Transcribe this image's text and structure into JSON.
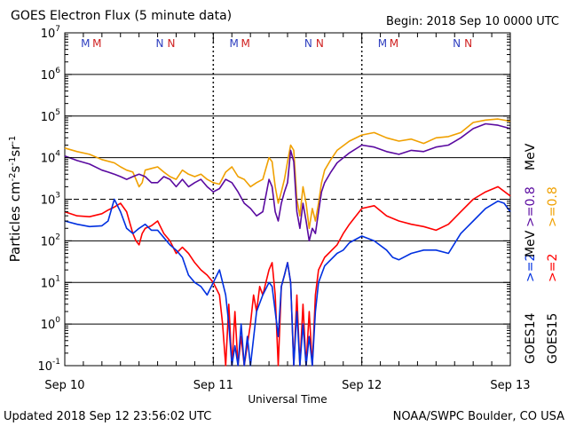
{
  "header": {
    "title": "GOES Electron Flux (5 minute data)",
    "begin": "Begin: 2018 Sep 10 0000 UTC"
  },
  "footer": {
    "updated": "Updated 2018 Sep 12 23:56:02 UTC",
    "credit": "NOAA/SWPC Boulder, CO USA"
  },
  "colors": {
    "goes14_ge08": "#5a0aa0",
    "goes15_ge08": "#f0a000",
    "goes14_ge2": "#0030e0",
    "goes15_ge2": "#ff0000",
    "markers_M": "#3040c0",
    "markers_N": "#d02020",
    "axis": "#000000"
  },
  "legend": {
    "goes14_label": "GOES14",
    "goes15_label": "GOES15",
    "ge2": ">=2",
    "ge08": ">=0.8",
    "unit": "MeV"
  },
  "chart_data": {
    "type": "line",
    "title": "GOES Electron Flux (5 minute data)",
    "xlabel": "Universal Time",
    "ylabel": "Particles cm-2s-1sr-1",
    "yscale": "log",
    "ylim": [
      0.1,
      10000000
    ],
    "xlim": [
      0,
      72
    ],
    "x_unit": "hours since 2018 Sep 10 0000 UTC",
    "x_ticks": [
      {
        "x": 0,
        "label": "Sep 10"
      },
      {
        "x": 24,
        "label": "Sep 11"
      },
      {
        "x": 48,
        "label": "Sep 12"
      },
      {
        "x": 72,
        "label": "Sep 13"
      }
    ],
    "y_ticks": [
      {
        "v": 0.1,
        "base": "10",
        "exp": "-1"
      },
      {
        "v": 1,
        "base": "10",
        "exp": "0"
      },
      {
        "v": 10,
        "base": "10",
        "exp": "1"
      },
      {
        "v": 100,
        "base": "10",
        "exp": "2"
      },
      {
        "v": 1000,
        "base": "10",
        "exp": "3"
      },
      {
        "v": 10000,
        "base": "10",
        "exp": "4"
      },
      {
        "v": 100000,
        "base": "10",
        "exp": "5"
      },
      {
        "v": 1000000,
        "base": "10",
        "exp": "6"
      },
      {
        "v": 10000000,
        "base": "10",
        "exp": "7"
      }
    ],
    "threshold": 1000,
    "day_markers": [
      {
        "letters": [
          {
            "t": "M",
            "c": "M"
          },
          {
            "t": "M",
            "c": "N"
          }
        ],
        "x": 2.6
      },
      {
        "letters": [
          {
            "t": "N",
            "c": "M"
          },
          {
            "t": "N",
            "c": "N"
          }
        ],
        "x": 14.7
      },
      {
        "letters": [
          {
            "t": "M",
            "c": "M"
          },
          {
            "t": "M",
            "c": "N"
          }
        ],
        "x": 26.6
      },
      {
        "letters": [
          {
            "t": "N",
            "c": "M"
          },
          {
            "t": "N",
            "c": "N"
          }
        ],
        "x": 38.7
      },
      {
        "letters": [
          {
            "t": "M",
            "c": "M"
          },
          {
            "t": "M",
            "c": "N"
          }
        ],
        "x": 50.6
      },
      {
        "letters": [
          {
            "t": "N",
            "c": "M"
          },
          {
            "t": "N",
            "c": "N"
          }
        ],
        "x": 62.7
      }
    ],
    "series": [
      {
        "name": "GOES15 >=0.8 MeV",
        "color": "#f0a000",
        "points": [
          [
            0,
            17000
          ],
          [
            2,
            14000
          ],
          [
            4,
            12000
          ],
          [
            6,
            9000
          ],
          [
            8,
            7500
          ],
          [
            9,
            6000
          ],
          [
            10,
            5000
          ],
          [
            11,
            4500
          ],
          [
            11.5,
            3000
          ],
          [
            12,
            2000
          ],
          [
            12.5,
            2500
          ],
          [
            13,
            5000
          ],
          [
            14,
            5500
          ],
          [
            15,
            6000
          ],
          [
            16,
            4500
          ],
          [
            17,
            3500
          ],
          [
            18,
            3000
          ],
          [
            19,
            5000
          ],
          [
            20,
            4000
          ],
          [
            21,
            3500
          ],
          [
            22,
            4000
          ],
          [
            23,
            3000
          ],
          [
            24,
            2500
          ],
          [
            25,
            2300
          ],
          [
            26,
            4500
          ],
          [
            27,
            6000
          ],
          [
            28,
            3500
          ],
          [
            29,
            3000
          ],
          [
            30,
            2000
          ],
          [
            31,
            2500
          ],
          [
            32,
            3000
          ],
          [
            33,
            10000
          ],
          [
            33.5,
            8000
          ],
          [
            34,
            2000
          ],
          [
            34.5,
            800
          ],
          [
            35,
            1500
          ],
          [
            35.5,
            3000
          ],
          [
            36,
            8000
          ],
          [
            36.5,
            20000
          ],
          [
            37,
            15000
          ],
          [
            37.5,
            1000
          ],
          [
            38,
            400
          ],
          [
            38.5,
            2000
          ],
          [
            39,
            800
          ],
          [
            39.5,
            200
          ],
          [
            40,
            600
          ],
          [
            40.5,
            300
          ],
          [
            41,
            800
          ],
          [
            41.5,
            2500
          ],
          [
            42,
            5000
          ],
          [
            43,
            9000
          ],
          [
            44,
            15000
          ],
          [
            46,
            25000
          ],
          [
            48,
            35000
          ],
          [
            50,
            40000
          ],
          [
            52,
            30000
          ],
          [
            54,
            25000
          ],
          [
            56,
            28000
          ],
          [
            58,
            22000
          ],
          [
            60,
            30000
          ],
          [
            62,
            32000
          ],
          [
            64,
            40000
          ],
          [
            66,
            70000
          ],
          [
            68,
            80000
          ],
          [
            70,
            85000
          ],
          [
            72,
            75000
          ]
        ]
      },
      {
        "name": "GOES14 >=0.8 MeV",
        "color": "#5a0aa0",
        "points": [
          [
            0,
            11000
          ],
          [
            2,
            8500
          ],
          [
            4,
            7000
          ],
          [
            6,
            5000
          ],
          [
            7,
            4500
          ],
          [
            8,
            4000
          ],
          [
            9,
            3500
          ],
          [
            10,
            3000
          ],
          [
            11,
            3500
          ],
          [
            12,
            4000
          ],
          [
            13,
            3500
          ],
          [
            14,
            2500
          ],
          [
            15,
            2500
          ],
          [
            16,
            3500
          ],
          [
            17,
            3000
          ],
          [
            18,
            2000
          ],
          [
            19,
            3000
          ],
          [
            20,
            2000
          ],
          [
            21,
            2500
          ],
          [
            22,
            3000
          ],
          [
            23,
            2000
          ],
          [
            24,
            1500
          ],
          [
            25,
            1800
          ],
          [
            26,
            3000
          ],
          [
            27,
            2500
          ],
          [
            28,
            1500
          ],
          [
            29,
            800
          ],
          [
            30,
            600
          ],
          [
            31,
            400
          ],
          [
            32,
            500
          ],
          [
            33,
            3000
          ],
          [
            33.5,
            2000
          ],
          [
            34,
            500
          ],
          [
            34.5,
            300
          ],
          [
            35,
            800
          ],
          [
            35.5,
            1500
          ],
          [
            36,
            2500
          ],
          [
            36.5,
            15000
          ],
          [
            37,
            8000
          ],
          [
            37.5,
            500
          ],
          [
            38,
            200
          ],
          [
            38.5,
            800
          ],
          [
            39,
            300
          ],
          [
            39.5,
            100
          ],
          [
            40,
            200
          ],
          [
            40.5,
            150
          ],
          [
            41,
            500
          ],
          [
            41.5,
            1500
          ],
          [
            42,
            2500
          ],
          [
            43,
            4500
          ],
          [
            44,
            7500
          ],
          [
            46,
            13000
          ],
          [
            48,
            20000
          ],
          [
            50,
            18000
          ],
          [
            52,
            14000
          ],
          [
            54,
            12000
          ],
          [
            56,
            15000
          ],
          [
            58,
            14000
          ],
          [
            60,
            18000
          ],
          [
            62,
            20000
          ],
          [
            64,
            30000
          ],
          [
            66,
            50000
          ],
          [
            68,
            65000
          ],
          [
            70,
            60000
          ],
          [
            72,
            50000
          ]
        ]
      },
      {
        "name": "GOES15 >=2 MeV",
        "color": "#ff0000",
        "points": [
          [
            0,
            500
          ],
          [
            2,
            400
          ],
          [
            4,
            380
          ],
          [
            6,
            450
          ],
          [
            7,
            550
          ],
          [
            8,
            650
          ],
          [
            9,
            800
          ],
          [
            10,
            500
          ],
          [
            11,
            150
          ],
          [
            11.5,
            100
          ],
          [
            12,
            80
          ],
          [
            12.5,
            150
          ],
          [
            13,
            200
          ],
          [
            14,
            230
          ],
          [
            15,
            300
          ],
          [
            16,
            150
          ],
          [
            17,
            100
          ],
          [
            18,
            50
          ],
          [
            19,
            70
          ],
          [
            20,
            50
          ],
          [
            21,
            30
          ],
          [
            22,
            20
          ],
          [
            23,
            15
          ],
          [
            24,
            10
          ],
          [
            25,
            5
          ],
          [
            25.5,
            1
          ],
          [
            26,
            0.1
          ],
          [
            26.5,
            3
          ],
          [
            27,
            0.1
          ],
          [
            27.5,
            2
          ],
          [
            28,
            0.1
          ],
          [
            28.5,
            0.5
          ],
          [
            29,
            0.1
          ],
          [
            30,
            1
          ],
          [
            30.5,
            5
          ],
          [
            31,
            2
          ],
          [
            31.5,
            8
          ],
          [
            32,
            5
          ],
          [
            33,
            20
          ],
          [
            33.5,
            30
          ],
          [
            34,
            5
          ],
          [
            34.5,
            0.1
          ],
          [
            35,
            8
          ],
          [
            35.5,
            15
          ],
          [
            36,
            30
          ],
          [
            36.5,
            10
          ],
          [
            37,
            0.1
          ],
          [
            37.5,
            5
          ],
          [
            38,
            0.1
          ],
          [
            38.5,
            3
          ],
          [
            39,
            0.1
          ],
          [
            39.5,
            2
          ],
          [
            40,
            0.1
          ],
          [
            40.5,
            5
          ],
          [
            41,
            20
          ],
          [
            42,
            40
          ],
          [
            44,
            80
          ],
          [
            45,
            150
          ],
          [
            46,
            250
          ],
          [
            48,
            600
          ],
          [
            50,
            700
          ],
          [
            52,
            400
          ],
          [
            54,
            300
          ],
          [
            56,
            250
          ],
          [
            58,
            220
          ],
          [
            60,
            180
          ],
          [
            62,
            250
          ],
          [
            64,
            500
          ],
          [
            66,
            1000
          ],
          [
            68,
            1500
          ],
          [
            70,
            2000
          ],
          [
            72,
            1200
          ]
        ]
      },
      {
        "name": "GOES14 >=2 MeV",
        "color": "#0030e0",
        "points": [
          [
            0,
            300
          ],
          [
            2,
            250
          ],
          [
            4,
            220
          ],
          [
            6,
            230
          ],
          [
            7,
            300
          ],
          [
            8,
            1000
          ],
          [
            9,
            500
          ],
          [
            10,
            200
          ],
          [
            11,
            150
          ],
          [
            12,
            200
          ],
          [
            13,
            250
          ],
          [
            14,
            180
          ],
          [
            15,
            180
          ],
          [
            16,
            120
          ],
          [
            17,
            80
          ],
          [
            18,
            60
          ],
          [
            19,
            40
          ],
          [
            20,
            15
          ],
          [
            21,
            10
          ],
          [
            22,
            8
          ],
          [
            23,
            5
          ],
          [
            24,
            10
          ],
          [
            25,
            20
          ],
          [
            26,
            5
          ],
          [
            26.5,
            1
          ],
          [
            27,
            0.1
          ],
          [
            27.5,
            0.3
          ],
          [
            28,
            0.1
          ],
          [
            28.5,
            1
          ],
          [
            29,
            0.1
          ],
          [
            29.5,
            0.5
          ],
          [
            30,
            0.1
          ],
          [
            31,
            2
          ],
          [
            32,
            5
          ],
          [
            33,
            10
          ],
          [
            33.5,
            8
          ],
          [
            34,
            2
          ],
          [
            34.5,
            0.5
          ],
          [
            35,
            8
          ],
          [
            35.5,
            15
          ],
          [
            36,
            30
          ],
          [
            36.5,
            10
          ],
          [
            37,
            0.1
          ],
          [
            37.5,
            2
          ],
          [
            38,
            0.1
          ],
          [
            38.5,
            1
          ],
          [
            39,
            0.1
          ],
          [
            39.5,
            0.5
          ],
          [
            40,
            0.1
          ],
          [
            40.5,
            2
          ],
          [
            41,
            10
          ],
          [
            42,
            25
          ],
          [
            44,
            50
          ],
          [
            45,
            60
          ],
          [
            46,
            90
          ],
          [
            48,
            130
          ],
          [
            50,
            100
          ],
          [
            52,
            60
          ],
          [
            53,
            40
          ],
          [
            54,
            35
          ],
          [
            56,
            50
          ],
          [
            58,
            60
          ],
          [
            60,
            60
          ],
          [
            62,
            50
          ],
          [
            64,
            150
          ],
          [
            66,
            300
          ],
          [
            68,
            600
          ],
          [
            70,
            900
          ],
          [
            71,
            800
          ],
          [
            72,
            500
          ]
        ]
      }
    ]
  }
}
